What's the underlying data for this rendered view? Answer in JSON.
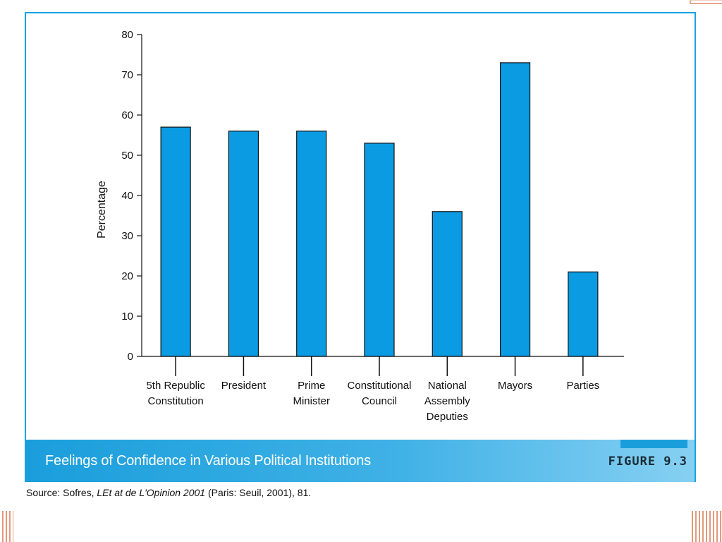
{
  "chart_data": {
    "type": "bar",
    "ylabel": "Percentage",
    "xlabel": "",
    "ylim": [
      0,
      80
    ],
    "yticks": [
      0,
      10,
      20,
      30,
      40,
      50,
      60,
      70,
      80
    ],
    "grid": false,
    "categories": [
      [
        "5th Republic",
        "Constitution"
      ],
      [
        "President"
      ],
      [
        "Prime",
        "Minister"
      ],
      [
        "Constitutional",
        "Council"
      ],
      [
        "National",
        "Assembly",
        "Deputies"
      ],
      [
        "Mayors"
      ],
      [
        "Parties"
      ]
    ],
    "values": [
      57,
      56,
      56,
      53,
      36,
      73,
      21
    ],
    "bar_color": "#0a9be3",
    "bar_stroke": "#111111"
  },
  "caption": {
    "title": "Feelings of Confidence in Various Political Institutions",
    "figure_label": "FIGURE 9.3"
  },
  "source": {
    "prefix": "Source: Sofres, ",
    "work": "LEt at de L'Opinion 2001",
    "suffix": " (Paris: Seuil, 2001), 81."
  },
  "colors": {
    "frame": "#1ba0e2",
    "band": "#1a9edb",
    "corner_accent": "#e39a7c"
  }
}
